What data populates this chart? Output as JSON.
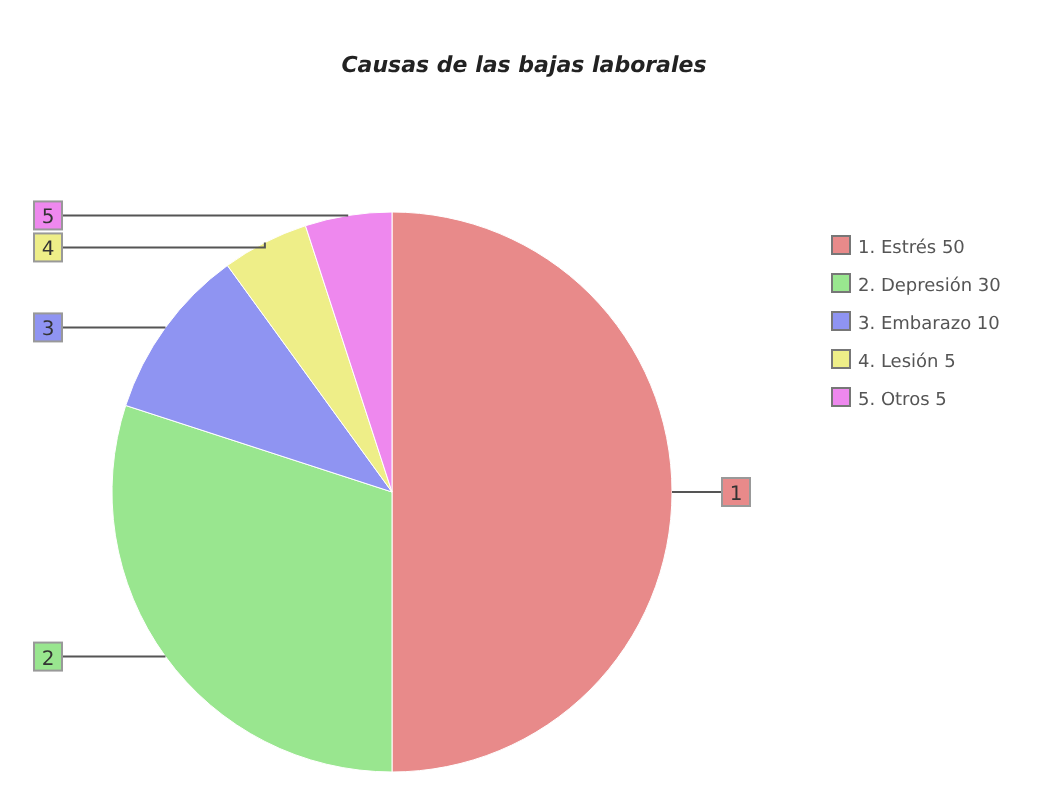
{
  "chart_data": {
    "type": "pie",
    "title": "Causas de las bajas laborales",
    "categories": [
      "1. Estrés 50",
      "2. Depresión 30",
      "3. Embarazo 10",
      "4. Lesión 5",
      "5. Otros 5"
    ],
    "values": [
      50,
      30,
      10,
      5,
      5
    ],
    "colors": [
      "#e88a8a",
      "#99e68f",
      "#8f94f2",
      "#eeee88",
      "#ee88ee"
    ],
    "annotations": [
      "1",
      "2",
      "3",
      "4",
      "5"
    ],
    "legend": "right"
  }
}
